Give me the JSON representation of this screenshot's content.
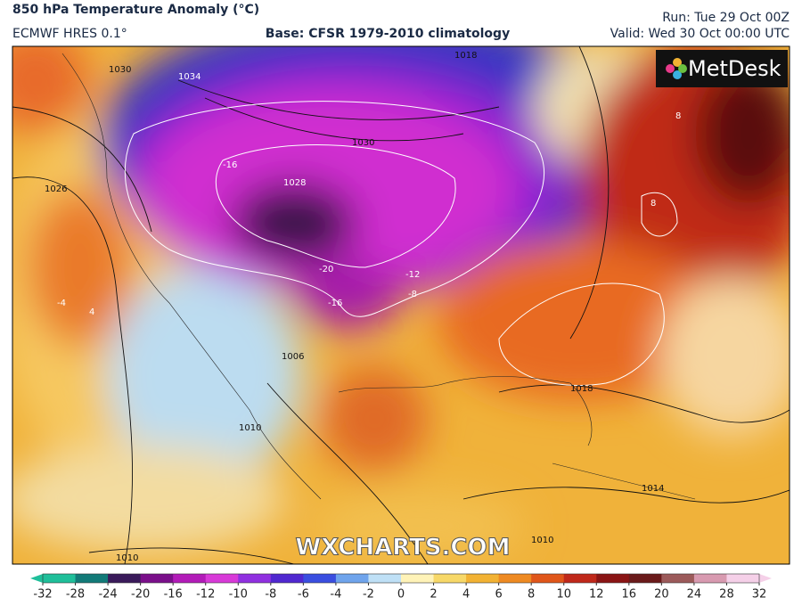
{
  "header": {
    "title": "850 hPa Temperature Anomaly (°C)",
    "model": "ECMWF HRES 0.1°",
    "base": "Base: CFSR 1979-2010 climatology",
    "run": "Run: Tue 29 Oct 00Z",
    "valid": "Valid: Wed 30 Oct 00:00 UTC"
  },
  "logo": "MetDesk",
  "watermark": "WXCHARTS.COM",
  "contour_labels": [
    "1030",
    "1034",
    "1026",
    "1018",
    "1028",
    "1030",
    "-16",
    "-20",
    "-16",
    "-12",
    "-8",
    "8",
    "8",
    "4",
    "-4",
    "1006",
    "1010",
    "1014",
    "1018",
    "1010",
    "1010"
  ],
  "colorbar": {
    "ticks": [
      -32,
      -28,
      -24,
      -20,
      -16,
      -12,
      -10,
      -8,
      -6,
      -4,
      -2,
      0,
      2,
      4,
      6,
      8,
      10,
      12,
      16,
      20,
      24,
      28,
      32
    ],
    "colors": [
      "#1fbf9a",
      "#127a78",
      "#3a1a5a",
      "#7a0f8a",
      "#b21bb8",
      "#d83ad8",
      "#9030e0",
      "#5028d0",
      "#3a4ee0",
      "#6fa4ec",
      "#bfe0f6",
      "#fff3b8",
      "#f7d868",
      "#f2b233",
      "#ee8a22",
      "#e0561a",
      "#c0281a",
      "#8a1414",
      "#6a1a1a",
      "#9c5a5a",
      "#d89ab0",
      "#f5d0e8"
    ]
  }
}
